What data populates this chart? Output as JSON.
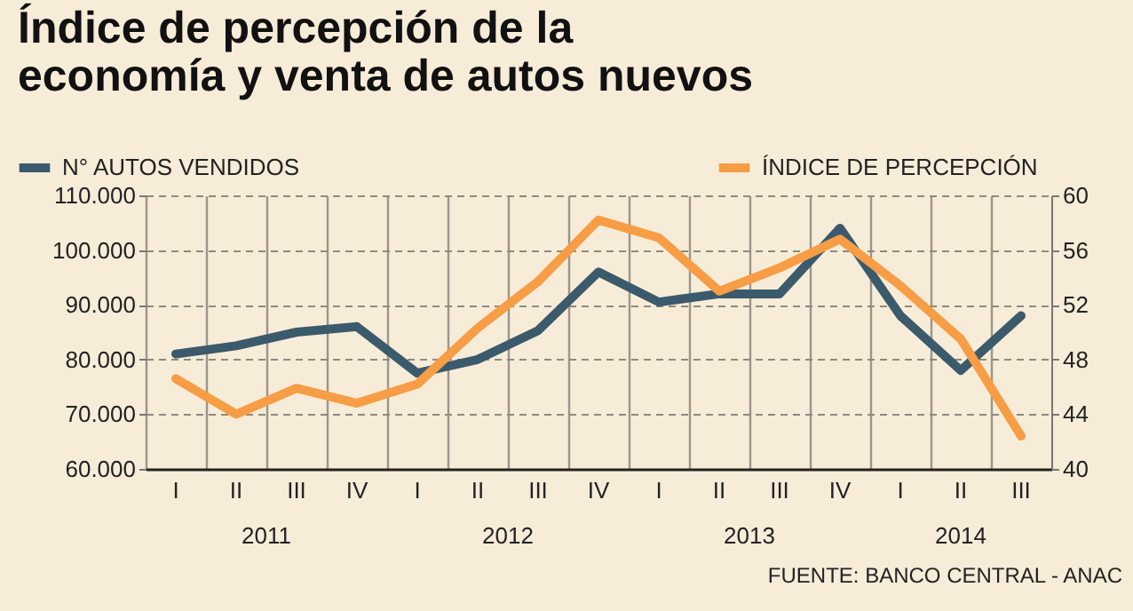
{
  "chart_data": {
    "type": "line",
    "title": "Índice de percepción de la\neconomía y venta de autos nuevos",
    "categories": [
      "I",
      "II",
      "III",
      "IV",
      "I",
      "II",
      "III",
      "IV",
      "I",
      "II",
      "III",
      "IV",
      "I",
      "II",
      "III"
    ],
    "series": [
      {
        "name": "N° AUTOS VENDIDOS",
        "color": "#3b5a6b",
        "values": [
          81000,
          82500,
          85000,
          86000,
          77500,
          80000,
          85300,
          96000,
          90500,
          92000,
          92000,
          104000,
          88000,
          78000,
          88000
        ]
      },
      {
        "name": "ÍNDICE DE PERCEPCIÓN",
        "color": "#f79d45",
        "axis": "y2",
        "values": [
          46.6,
          44.0,
          45.9,
          44.8,
          46.2,
          50.3,
          53.7,
          58.2,
          56.9,
          53.0,
          54.7,
          56.8,
          53.4,
          49.5,
          42.4
        ]
      }
    ],
    "ylim": [
      60000,
      110000
    ],
    "yticks": [
      {
        "value": 60000,
        "label": "60.000"
      },
      {
        "value": 70000,
        "label": "70.000"
      },
      {
        "value": 80000,
        "label": "80.000"
      },
      {
        "value": 90000,
        "label": "90.000"
      },
      {
        "value": 100000,
        "label": "100.000"
      },
      {
        "value": 110000,
        "label": "110.000"
      }
    ],
    "y2lim": [
      40,
      60
    ],
    "y2ticks": [
      40,
      44,
      48,
      52,
      56,
      60
    ],
    "grid": true,
    "legend": "top",
    "annotations": [
      "2011",
      "2012",
      "2013",
      "2014",
      "FUENTE: BANCO CENTRAL - ANAC"
    ]
  }
}
